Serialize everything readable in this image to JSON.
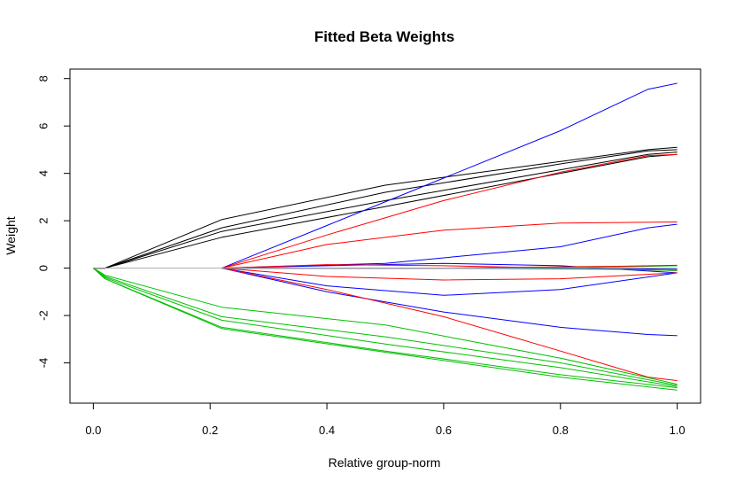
{
  "chart_data": {
    "type": "line",
    "title": "Fitted Beta Weights",
    "xlabel": "Relative group-norm",
    "ylabel": "Weight",
    "xlim": [
      -0.04,
      1.04
    ],
    "ylim": [
      -5.7,
      8.4
    ],
    "x_ticks": [
      "0.0",
      "0.2",
      "0.4",
      "0.6",
      "0.8",
      "1.0"
    ],
    "y_ticks": [
      "-4",
      "-2",
      "0",
      "2",
      "4",
      "6",
      "8"
    ],
    "grid": false,
    "legend": "none",
    "series": [
      {
        "color": "#000000",
        "points": [
          [
            0.0,
            0
          ],
          [
            0.02,
            0
          ],
          [
            0.22,
            2.05
          ],
          [
            0.5,
            3.5
          ],
          [
            0.8,
            4.5
          ],
          [
            0.95,
            5.0
          ],
          [
            1.0,
            5.1
          ]
        ]
      },
      {
        "color": "#000000",
        "points": [
          [
            0.0,
            0
          ],
          [
            0.02,
            0
          ],
          [
            0.22,
            1.7
          ],
          [
            0.5,
            3.2
          ],
          [
            0.8,
            4.4
          ],
          [
            0.95,
            4.95
          ],
          [
            1.0,
            5.0
          ]
        ]
      },
      {
        "color": "#000000",
        "points": [
          [
            0.0,
            0
          ],
          [
            0.02,
            0
          ],
          [
            0.22,
            1.55
          ],
          [
            0.5,
            2.85
          ],
          [
            0.8,
            4.15
          ],
          [
            0.95,
            4.8
          ],
          [
            1.0,
            4.9
          ]
        ]
      },
      {
        "color": "#000000",
        "points": [
          [
            0.0,
            0
          ],
          [
            0.02,
            0
          ],
          [
            0.22,
            1.3
          ],
          [
            0.5,
            2.6
          ],
          [
            0.8,
            4.0
          ],
          [
            0.95,
            4.7
          ],
          [
            1.0,
            4.8
          ]
        ]
      },
      {
        "color": "#0000ff",
        "points": [
          [
            0.22,
            0
          ],
          [
            0.4,
            1.8
          ],
          [
            0.6,
            3.8
          ],
          [
            0.8,
            5.8
          ],
          [
            0.95,
            7.55
          ],
          [
            1.0,
            7.8
          ]
        ]
      },
      {
        "color": "#0000ff",
        "points": [
          [
            0.22,
            0
          ],
          [
            0.5,
            0.2
          ],
          [
            0.8,
            0.9
          ],
          [
            0.95,
            1.7
          ],
          [
            1.0,
            1.85
          ]
        ]
      },
      {
        "color": "#0000ff",
        "points": [
          [
            0.22,
            0
          ],
          [
            0.4,
            0.1
          ],
          [
            0.6,
            0.2
          ],
          [
            0.8,
            0.1
          ],
          [
            1.0,
            -0.2
          ]
        ]
      },
      {
        "color": "#0000ff",
        "points": [
          [
            0.22,
            0
          ],
          [
            0.4,
            -0.75
          ],
          [
            0.6,
            -1.15
          ],
          [
            0.8,
            -0.9
          ],
          [
            1.0,
            -0.2
          ]
        ]
      },
      {
        "color": "#0000ff",
        "points": [
          [
            0.22,
            0
          ],
          [
            0.4,
            -1.0
          ],
          [
            0.6,
            -1.85
          ],
          [
            0.8,
            -2.5
          ],
          [
            0.95,
            -2.8
          ],
          [
            1.0,
            -2.85
          ]
        ]
      },
      {
        "color": "#ff0000",
        "points": [
          [
            0.22,
            0
          ],
          [
            0.4,
            1.4
          ],
          [
            0.6,
            2.85
          ],
          [
            0.8,
            4.05
          ],
          [
            0.95,
            4.75
          ],
          [
            1.0,
            4.8
          ]
        ]
      },
      {
        "color": "#ff0000",
        "points": [
          [
            0.22,
            0
          ],
          [
            0.4,
            1.0
          ],
          [
            0.6,
            1.6
          ],
          [
            0.8,
            1.9
          ],
          [
            1.0,
            1.95
          ]
        ]
      },
      {
        "color": "#ff0000",
        "points": [
          [
            0.22,
            0
          ],
          [
            0.4,
            0.15
          ],
          [
            0.6,
            0.1
          ],
          [
            0.8,
            0.0
          ],
          [
            1.0,
            -0.1
          ]
        ]
      },
      {
        "color": "#ff0000",
        "points": [
          [
            0.22,
            0
          ],
          [
            0.4,
            -0.35
          ],
          [
            0.6,
            -0.5
          ],
          [
            0.8,
            -0.45
          ],
          [
            1.0,
            -0.2
          ]
        ]
      },
      {
        "color": "#ff0000",
        "points": [
          [
            0.22,
            0
          ],
          [
            0.4,
            -0.9
          ],
          [
            0.6,
            -2.05
          ],
          [
            0.8,
            -3.5
          ],
          [
            0.95,
            -4.6
          ],
          [
            1.0,
            -4.75
          ]
        ]
      },
      {
        "color": "#00c000",
        "points": [
          [
            0.0,
            0
          ],
          [
            0.02,
            -0.3
          ],
          [
            0.22,
            -1.65
          ],
          [
            0.5,
            -2.4
          ],
          [
            0.8,
            -3.8
          ],
          [
            1.0,
            -4.9
          ]
        ]
      },
      {
        "color": "#00c000",
        "points": [
          [
            0.0,
            0
          ],
          [
            0.02,
            -0.35
          ],
          [
            0.22,
            -2.05
          ],
          [
            0.5,
            -2.9
          ],
          [
            0.8,
            -4.0
          ],
          [
            1.0,
            -4.95
          ]
        ]
      },
      {
        "color": "#00c000",
        "points": [
          [
            0.0,
            0
          ],
          [
            0.02,
            -0.4
          ],
          [
            0.22,
            -2.2
          ],
          [
            0.5,
            -3.2
          ],
          [
            0.8,
            -4.2
          ],
          [
            1.0,
            -5.0
          ]
        ]
      },
      {
        "color": "#00c000",
        "points": [
          [
            0.0,
            0
          ],
          [
            0.02,
            -0.45
          ],
          [
            0.22,
            -2.5
          ],
          [
            0.5,
            -3.5
          ],
          [
            0.8,
            -4.5
          ],
          [
            1.0,
            -5.05
          ]
        ]
      },
      {
        "color": "#00c000",
        "points": [
          [
            0.0,
            0
          ],
          [
            0.02,
            -0.45
          ],
          [
            0.22,
            -2.55
          ],
          [
            0.5,
            -3.55
          ],
          [
            0.8,
            -4.6
          ],
          [
            1.0,
            -5.15
          ]
        ]
      },
      {
        "color": "#00c000",
        "points": [
          [
            0.22,
            0
          ],
          [
            0.6,
            0
          ],
          [
            0.9,
            0.05
          ],
          [
            1.0,
            0.1
          ]
        ]
      },
      {
        "color": "#00c000",
        "points": [
          [
            0.22,
            0
          ],
          [
            0.6,
            0
          ],
          [
            0.9,
            -0.05
          ],
          [
            1.0,
            -0.1
          ]
        ]
      },
      {
        "color": "#ff0000",
        "points": [
          [
            0.22,
            0
          ],
          [
            0.6,
            0
          ],
          [
            0.9,
            0.08
          ],
          [
            1.0,
            0.12
          ]
        ]
      },
      {
        "color": "#0000ff",
        "points": [
          [
            0.22,
            0
          ],
          [
            0.6,
            0
          ],
          [
            0.9,
            -0.02
          ],
          [
            1.0,
            -0.05
          ]
        ]
      },
      {
        "color": "#aaaaaa",
        "points": [
          [
            0.0,
            0
          ],
          [
            1.0,
            0
          ]
        ]
      }
    ]
  }
}
